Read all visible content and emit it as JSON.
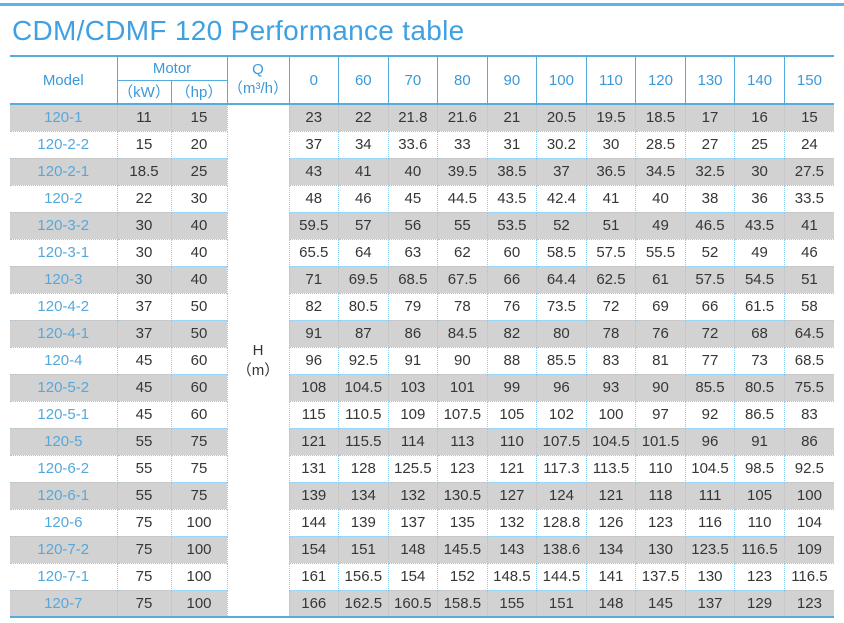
{
  "page": {
    "title": "CDM/CDMF 120 Performance table"
  },
  "colors": {
    "accent_blue": "#3fa0e2",
    "header_text_blue": "#3a99da",
    "model_text_blue": "#56a8db",
    "solid_border_blue": "#55acdf",
    "dotted_border_blue": "#8fccef",
    "row_gray": "#d2d2d2",
    "data_text": "#363636"
  },
  "table": {
    "header": {
      "model": "Model",
      "motor": "Motor",
      "kw": "（kW）",
      "hp": "（hp）",
      "q_label": "Q",
      "q_unit": "（m³/h）",
      "flow_values": [
        "0",
        "60",
        "70",
        "80",
        "90",
        "100",
        "110",
        "120",
        "130",
        "140",
        "150"
      ],
      "h_label": "H",
      "h_unit": "（m）"
    },
    "rows": [
      {
        "model": "120-1",
        "kw": "11",
        "hp": "15",
        "values": [
          "23",
          "22",
          "21.8",
          "21.6",
          "21",
          "20.5",
          "19.5",
          "18.5",
          "17",
          "16",
          "15"
        ]
      },
      {
        "model": "120-2-2",
        "kw": "15",
        "hp": "20",
        "values": [
          "37",
          "34",
          "33.6",
          "33",
          "31",
          "30.2",
          "30",
          "28.5",
          "27",
          "25",
          "24"
        ]
      },
      {
        "model": "120-2-1",
        "kw": "18.5",
        "hp": "25",
        "values": [
          "43",
          "41",
          "40",
          "39.5",
          "38.5",
          "37",
          "36.5",
          "34.5",
          "32.5",
          "30",
          "27.5"
        ]
      },
      {
        "model": "120-2",
        "kw": "22",
        "hp": "30",
        "values": [
          "48",
          "46",
          "45",
          "44.5",
          "43.5",
          "42.4",
          "41",
          "40",
          "38",
          "36",
          "33.5"
        ]
      },
      {
        "model": "120-3-2",
        "kw": "30",
        "hp": "40",
        "values": [
          "59.5",
          "57",
          "56",
          "55",
          "53.5",
          "52",
          "51",
          "49",
          "46.5",
          "43.5",
          "41"
        ]
      },
      {
        "model": "120-3-1",
        "kw": "30",
        "hp": "40",
        "values": [
          "65.5",
          "64",
          "63",
          "62",
          "60",
          "58.5",
          "57.5",
          "55.5",
          "52",
          "49",
          "46"
        ]
      },
      {
        "model": "120-3",
        "kw": "30",
        "hp": "40",
        "values": [
          "71",
          "69.5",
          "68.5",
          "67.5",
          "66",
          "64.4",
          "62.5",
          "61",
          "57.5",
          "54.5",
          "51"
        ]
      },
      {
        "model": "120-4-2",
        "kw": "37",
        "hp": "50",
        "values": [
          "82",
          "80.5",
          "79",
          "78",
          "76",
          "73.5",
          "72",
          "69",
          "66",
          "61.5",
          "58"
        ]
      },
      {
        "model": "120-4-1",
        "kw": "37",
        "hp": "50",
        "values": [
          "91",
          "87",
          "86",
          "84.5",
          "82",
          "80",
          "78",
          "76",
          "72",
          "68",
          "64.5"
        ]
      },
      {
        "model": "120-4",
        "kw": "45",
        "hp": "60",
        "values": [
          "96",
          "92.5",
          "91",
          "90",
          "88",
          "85.5",
          "83",
          "81",
          "77",
          "73",
          "68.5"
        ]
      },
      {
        "model": "120-5-2",
        "kw": "45",
        "hp": "60",
        "values": [
          "108",
          "104.5",
          "103",
          "101",
          "99",
          "96",
          "93",
          "90",
          "85.5",
          "80.5",
          "75.5"
        ]
      },
      {
        "model": "120-5-1",
        "kw": "45",
        "hp": "60",
        "values": [
          "115",
          "110.5",
          "109",
          "107.5",
          "105",
          "102",
          "100",
          "97",
          "92",
          "86.5",
          "83"
        ]
      },
      {
        "model": "120-5",
        "kw": "55",
        "hp": "75",
        "values": [
          "121",
          "115.5",
          "114",
          "113",
          "110",
          "107.5",
          "104.5",
          "101.5",
          "96",
          "91",
          "86"
        ]
      },
      {
        "model": "120-6-2",
        "kw": "55",
        "hp": "75",
        "values": [
          "131",
          "128",
          "125.5",
          "123",
          "121",
          "117.3",
          "113.5",
          "110",
          "104.5",
          "98.5",
          "92.5"
        ]
      },
      {
        "model": "120-6-1",
        "kw": "55",
        "hp": "75",
        "values": [
          "139",
          "134",
          "132",
          "130.5",
          "127",
          "124",
          "121",
          "118",
          "111",
          "105",
          "100"
        ]
      },
      {
        "model": "120-6",
        "kw": "75",
        "hp": "100",
        "values": [
          "144",
          "139",
          "137",
          "135",
          "132",
          "128.8",
          "126",
          "123",
          "116",
          "110",
          "104"
        ]
      },
      {
        "model": "120-7-2",
        "kw": "75",
        "hp": "100",
        "values": [
          "154",
          "151",
          "148",
          "145.5",
          "143",
          "138.6",
          "134",
          "130",
          "123.5",
          "116.5",
          "109"
        ]
      },
      {
        "model": "120-7-1",
        "kw": "75",
        "hp": "100",
        "values": [
          "161",
          "156.5",
          "154",
          "152",
          "148.5",
          "144.5",
          "141",
          "137.5",
          "130",
          "123",
          "116.5"
        ]
      },
      {
        "model": "120-7",
        "kw": "75",
        "hp": "100",
        "values": [
          "166",
          "162.5",
          "160.5",
          "158.5",
          "155",
          "151",
          "148",
          "145",
          "137",
          "129",
          "123"
        ]
      }
    ]
  }
}
